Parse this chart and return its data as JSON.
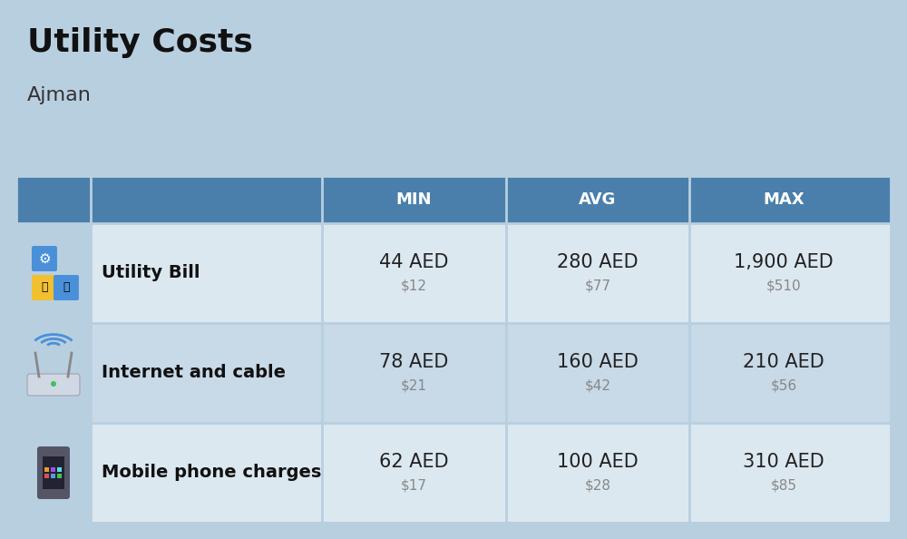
{
  "title": "Utility Costs",
  "subtitle": "Ajman",
  "background_color": "#b8cfe0",
  "table_header_color": "#4a7fab",
  "table_header_text_color": "#ffffff",
  "table_row_color_odd": "#dce8f0",
  "table_row_color_even": "#c8d9e8",
  "icon_col_color": "#b8cfe0",
  "columns": [
    "",
    "",
    "MIN",
    "AVG",
    "MAX"
  ],
  "rows": [
    {
      "icon_label": "utility",
      "name": "Utility Bill",
      "min_aed": "44 AED",
      "min_usd": "$12",
      "avg_aed": "280 AED",
      "avg_usd": "$77",
      "max_aed": "1,900 AED",
      "max_usd": "$510"
    },
    {
      "icon_label": "internet",
      "name": "Internet and cable",
      "min_aed": "78 AED",
      "min_usd": "$21",
      "avg_aed": "160 AED",
      "avg_usd": "$42",
      "max_aed": "210 AED",
      "max_usd": "$56"
    },
    {
      "icon_label": "mobile",
      "name": "Mobile phone charges",
      "min_aed": "62 AED",
      "min_usd": "$17",
      "avg_aed": "100 AED",
      "avg_usd": "$28",
      "max_aed": "310 AED",
      "max_usd": "$85"
    }
  ],
  "title_fontsize": 26,
  "subtitle_fontsize": 16,
  "header_fontsize": 13,
  "cell_aed_fontsize": 15,
  "cell_usd_fontsize": 11,
  "name_fontsize": 14,
  "usd_color": "#888888",
  "cell_text_color": "#222222",
  "name_text_color": "#111111",
  "flag_red": "#e8534a",
  "flag_green": "#5a9e2f",
  "flag_white": "#f0f0f0",
  "flag_black": "#555566"
}
